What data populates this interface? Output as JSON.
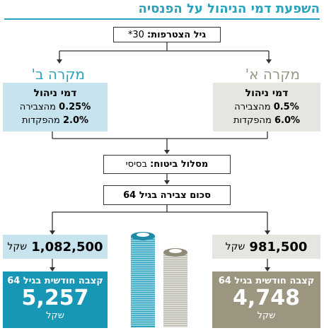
{
  "title": "השפעת דמי הניהול על הפנסיה",
  "join_age": {
    "label": "גיל הצטרפות:",
    "value": "30*"
  },
  "case_a": {
    "label": "מקרה א'",
    "fees_heading": "דמי ניהול",
    "fee_accumulation": {
      "value": "0.5%",
      "label": "מהצבירה"
    },
    "fee_deposits": {
      "value": "6.0%",
      "label": "מהפקדות"
    },
    "sum": {
      "value": "981,500",
      "unit": "שקל"
    },
    "pension": {
      "title": "קצבה חודשית בגיל 64",
      "value": "4,748",
      "unit": "שקל"
    }
  },
  "case_b": {
    "label": "מקרה ב'",
    "fees_heading": "דמי ניהול",
    "fee_accumulation": {
      "value": "0.25%",
      "label": "מהצבירה"
    },
    "fee_deposits": {
      "value": "2.0%",
      "label": "מהפקדות"
    },
    "sum": {
      "value": "1,082,500",
      "unit": "שקל"
    },
    "pension": {
      "title": "קצבה חודשית בגיל 64",
      "value": "5,257",
      "unit": "שקל"
    }
  },
  "insurance_track": {
    "label": "מסלול ביטוח:",
    "value": "בסיסי"
  },
  "accumulated_sum_label": "סכום צבירה בגיל 64",
  "colors": {
    "accent_blue": "#2aa3bd",
    "case_b_dark": "#1796b6",
    "case_b_light": "#c6e3ee",
    "case_a_dark": "#9c9680",
    "case_a_light": "#e6e5e0"
  },
  "icons": {
    "money_stack_large": "money-stack-icon",
    "money_stack_small": "money-stack-icon"
  }
}
